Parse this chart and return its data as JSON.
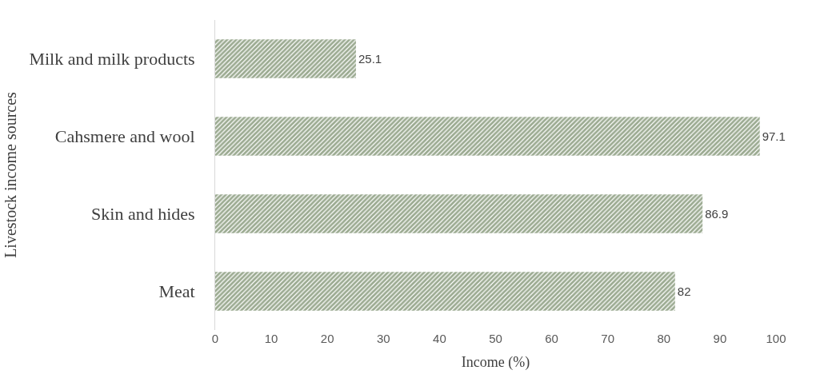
{
  "chart_data": {
    "type": "bar",
    "orientation": "horizontal",
    "xlabel": "Income (%)",
    "ylabel": "Livestock income sources",
    "categories": [
      "Milk and milk products",
      "Cahsmere and wool",
      "Skin and hides",
      "Meat"
    ],
    "values": [
      25.1,
      97.1,
      86.9,
      82
    ],
    "color": "#375623",
    "xlim": [
      0,
      100
    ],
    "xticks": [
      0,
      10,
      20,
      30,
      40,
      50,
      60,
      70,
      80,
      90,
      100
    ],
    "legend": false,
    "data_labels": true
  }
}
